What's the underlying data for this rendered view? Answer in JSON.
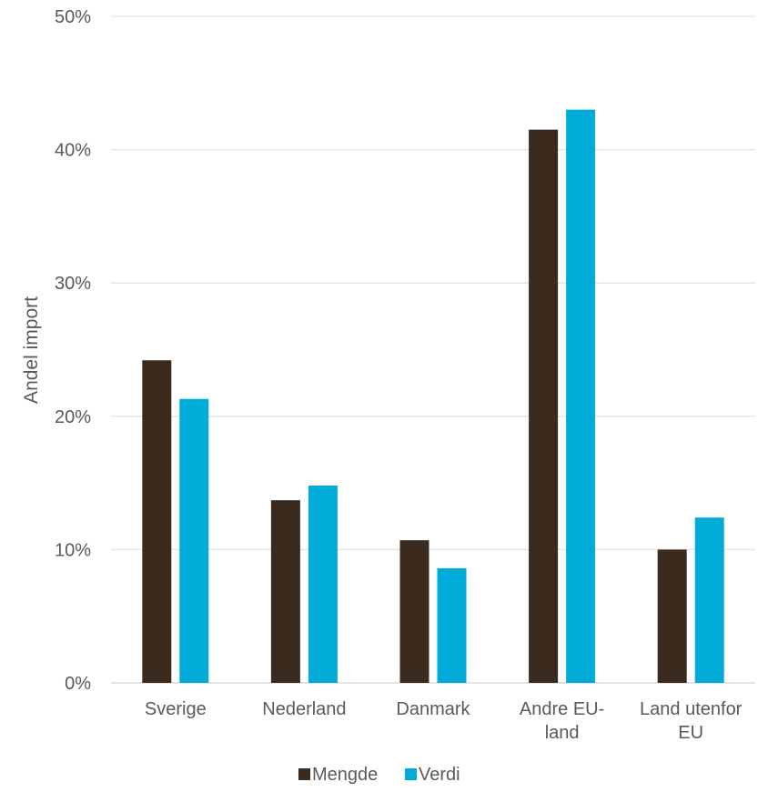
{
  "chart_data": {
    "type": "bar",
    "title": "",
    "xlabel": "",
    "ylabel": "Andel import",
    "categories": [
      [
        "Sverige"
      ],
      [
        "Nederland"
      ],
      [
        "Danmark"
      ],
      [
        "Andre EU-",
        "land"
      ],
      [
        "Land utenfor",
        "EU"
      ]
    ],
    "series": [
      {
        "name": "Mengde",
        "color": "#3b2a1e",
        "values": [
          24.2,
          13.7,
          10.7,
          41.5,
          10.0
        ]
      },
      {
        "name": "Verdi",
        "color": "#00acd7",
        "values": [
          21.3,
          14.8,
          8.6,
          43.0,
          12.4
        ]
      }
    ],
    "ylim": [
      0,
      50
    ],
    "yticks": [
      "0%",
      "10%",
      "20%",
      "30%",
      "40%",
      "50%"
    ],
    "grid": true,
    "legend": "bottom"
  }
}
